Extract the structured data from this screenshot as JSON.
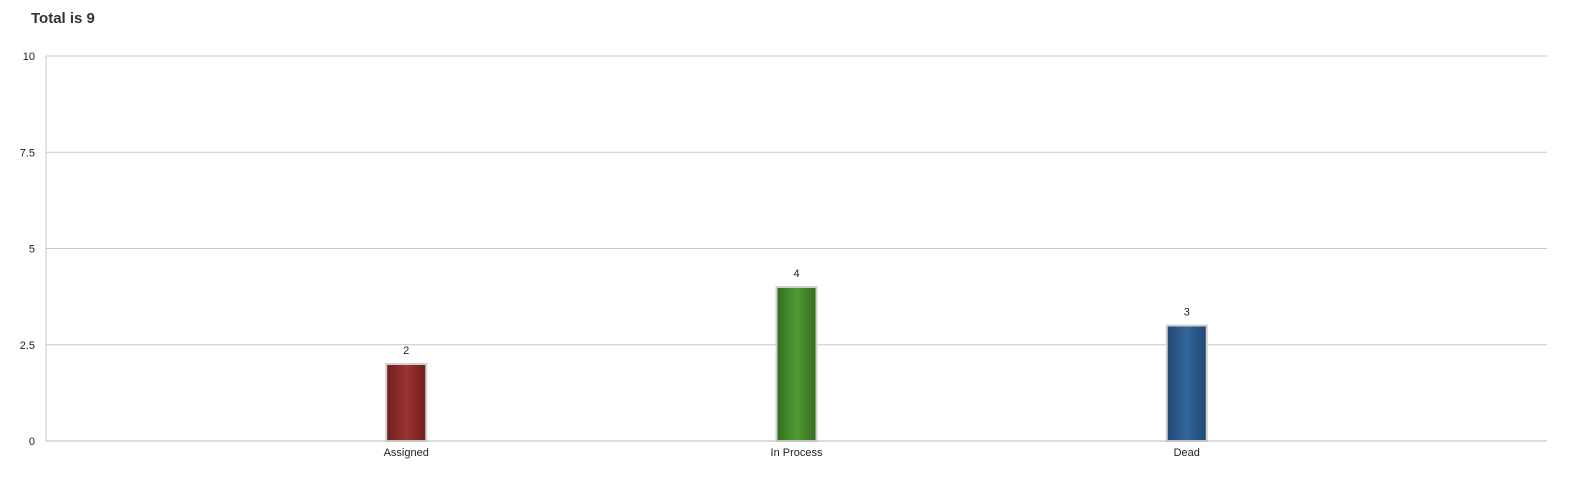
{
  "title": "Total is 9",
  "chart_data": {
    "type": "bar",
    "title": "Total is 9",
    "categories": [
      "Assigned",
      "In Process",
      "Dead"
    ],
    "values": [
      2,
      4,
      3
    ],
    "colors": [
      "#8b2a2a",
      "#468a2c",
      "#2b5b8c"
    ],
    "ylim": [
      0,
      10
    ],
    "yticks": [
      0,
      2.5,
      5,
      7.5,
      10
    ],
    "ytick_labels": [
      "0",
      "2.5",
      "5",
      "7.5",
      "10"
    ],
    "xlabel": "",
    "ylabel": "",
    "grid": true,
    "legend": "none"
  }
}
